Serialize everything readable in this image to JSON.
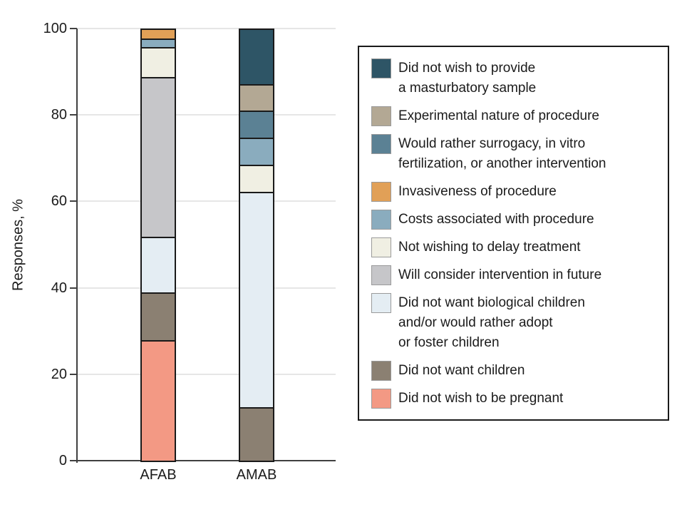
{
  "figure": {
    "kind": "stacked-bar-chart"
  },
  "chart_data": {
    "type": "bar",
    "stacked": true,
    "title": "",
    "xlabel": "",
    "ylabel": "Responses, %",
    "categories": [
      "AFAB",
      "AMAB"
    ],
    "ylim": [
      0,
      100
    ],
    "yticks": [
      0,
      20,
      40,
      60,
      80,
      100
    ],
    "grid": "horizontal",
    "legend_position": "right-box",
    "series": [
      {
        "name": "Did not wish to provide a masturbatory sample",
        "legend_lines": [
          "Did not wish to provide",
          "a masturbatory sample"
        ],
        "color": "#2e5566",
        "values": [
          0,
          12.5
        ]
      },
      {
        "name": "Experimental nature of procedure",
        "legend_lines": [
          "Experimental nature of procedure"
        ],
        "color": "#b3a894",
        "values": [
          0,
          6.25
        ]
      },
      {
        "name": "Would rather surrogacy, in vitro fertilization, or another intervention",
        "legend_lines": [
          "Would rather surrogacy, in vitro",
          "fertilization, or another intervention"
        ],
        "color": "#5b8194",
        "values": [
          0,
          6.25
        ]
      },
      {
        "name": "Invasiveness of procedure",
        "legend_lines": [
          "Invasiveness of procedure"
        ],
        "color": "#e1a057",
        "values": [
          2,
          0
        ]
      },
      {
        "name": "Costs associated with procedure",
        "legend_lines": [
          "Costs associated with procedure"
        ],
        "color": "#8aacbe",
        "values": [
          2,
          6.25
        ]
      },
      {
        "name": "Not wishing to delay treatment",
        "legend_lines": [
          "Not wishing to delay treatment"
        ],
        "color": "#f0efe3",
        "values": [
          7,
          6.25
        ]
      },
      {
        "name": "Will consider intervention in future",
        "legend_lines": [
          "Will consider intervention in future"
        ],
        "color": "#c6c6c9",
        "values": [
          37,
          0
        ]
      },
      {
        "name": "Did not want biological children and/or would rather adopt or foster children",
        "legend_lines": [
          "Did not want biological children",
          "and/or would rather adopt",
          "or foster children"
        ],
        "color": "#e4edf3",
        "values": [
          13,
          50
        ]
      },
      {
        "name": "Did not want children",
        "legend_lines": [
          "Did not want children"
        ],
        "color": "#8b8072",
        "values": [
          11,
          12.5
        ]
      },
      {
        "name": "Did not wish to be pregnant",
        "legend_lines": [
          "Did not wish to be pregnant"
        ],
        "color": "#f39984",
        "values": [
          28,
          0
        ]
      }
    ]
  },
  "colors": {
    "background": "#ffffff",
    "axis": "#404040",
    "grid": "#e6e6e6",
    "text": "#1b1b1b",
    "bar_border": "#1a1a1a",
    "swatch_border": "#9a9a9a",
    "legend_border": "#1a1a1a"
  }
}
